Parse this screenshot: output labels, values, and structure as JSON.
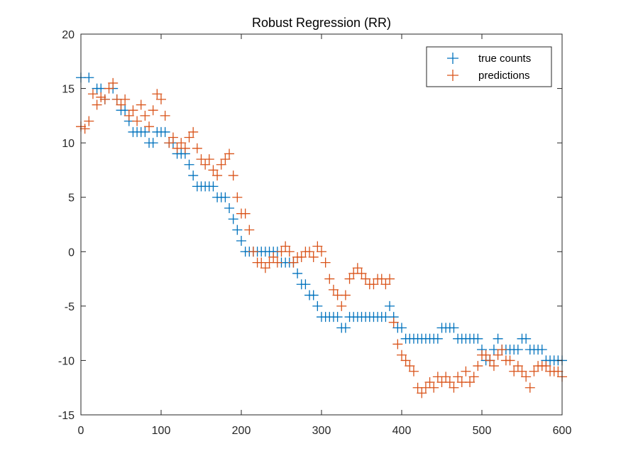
{
  "chart_data": {
    "type": "scatter",
    "title": "Robust Regression (RR)",
    "xlabel": "",
    "ylabel": "",
    "xlim": [
      0,
      600
    ],
    "ylim": [
      -15,
      20
    ],
    "xticks": [
      0,
      100,
      200,
      300,
      400,
      500,
      600
    ],
    "yticks": [
      -15,
      -10,
      -5,
      0,
      5,
      10,
      15,
      20
    ],
    "legend_position": "top-right",
    "grid": false,
    "marker": "+",
    "series": [
      {
        "name": "true counts",
        "color": "#0072BD",
        "x": [
          0,
          10,
          20,
          25,
          30,
          40,
          45,
          50,
          55,
          60,
          65,
          70,
          75,
          80,
          85,
          90,
          95,
          100,
          105,
          110,
          115,
          120,
          125,
          130,
          135,
          140,
          145,
          150,
          155,
          160,
          165,
          170,
          175,
          180,
          185,
          190,
          195,
          200,
          205,
          210,
          215,
          220,
          225,
          230,
          235,
          240,
          245,
          250,
          255,
          260,
          265,
          270,
          275,
          280,
          285,
          290,
          295,
          300,
          305,
          310,
          315,
          320,
          325,
          330,
          335,
          340,
          345,
          350,
          355,
          360,
          365,
          370,
          375,
          380,
          385,
          390,
          395,
          400,
          405,
          410,
          415,
          420,
          425,
          430,
          435,
          440,
          445,
          450,
          455,
          460,
          465,
          470,
          475,
          480,
          485,
          490,
          495,
          500,
          505,
          510,
          515,
          520,
          525,
          530,
          535,
          540,
          545,
          550,
          555,
          560,
          565,
          570,
          575,
          580,
          585,
          590,
          595,
          600
        ],
        "y": [
          16,
          16,
          15,
          15,
          14,
          15,
          14,
          13,
          13,
          12,
          11,
          11,
          11,
          11,
          10,
          10,
          11,
          11,
          11,
          10,
          10,
          9,
          9,
          9,
          8,
          7,
          6,
          6,
          6,
          6,
          6,
          5,
          5,
          5,
          4,
          3,
          2,
          1,
          0,
          0,
          0,
          0,
          0,
          0,
          0,
          0,
          0,
          -1,
          -1,
          -1,
          -1,
          -2,
          -3,
          -3,
          -4,
          -4,
          -5,
          -6,
          -6,
          -6,
          -6,
          -6,
          -7,
          -7,
          -6,
          -6,
          -6,
          -6,
          -6,
          -6,
          -6,
          -6,
          -6,
          -6,
          -5,
          -6,
          -7,
          -7,
          -8,
          -8,
          -8,
          -8,
          -8,
          -8,
          -8,
          -8,
          -8,
          -7,
          -7,
          -7,
          -7,
          -8,
          -8,
          -8,
          -8,
          -8,
          -8,
          -9,
          -10,
          -10,
          -9,
          -8,
          -9,
          -9,
          -9,
          -9,
          -9,
          -8,
          -8,
          -9,
          -9,
          -9,
          -9,
          -10,
          -10,
          -10,
          -10,
          -10
        ]
      },
      {
        "name": "predictions",
        "color": "#D95319",
        "x": [
          0,
          5,
          10,
          15,
          20,
          25,
          30,
          35,
          40,
          45,
          50,
          55,
          60,
          65,
          70,
          75,
          80,
          85,
          90,
          95,
          100,
          105,
          110,
          115,
          120,
          125,
          130,
          135,
          140,
          145,
          150,
          155,
          160,
          165,
          170,
          175,
          180,
          185,
          190,
          195,
          200,
          205,
          210,
          215,
          220,
          225,
          230,
          235,
          240,
          245,
          250,
          255,
          260,
          265,
          270,
          275,
          280,
          285,
          290,
          295,
          300,
          305,
          310,
          315,
          320,
          325,
          330,
          335,
          340,
          345,
          350,
          355,
          360,
          365,
          370,
          375,
          380,
          385,
          390,
          395,
          400,
          405,
          410,
          415,
          420,
          425,
          430,
          435,
          440,
          445,
          450,
          455,
          460,
          465,
          470,
          475,
          480,
          485,
          490,
          495,
          500,
          505,
          510,
          515,
          520,
          525,
          530,
          535,
          540,
          545,
          550,
          555,
          560,
          565,
          570,
          575,
          580,
          585,
          590,
          595,
          600
        ],
        "y": [
          11.5,
          11.3,
          12,
          14.5,
          13.5,
          14.2,
          14,
          15,
          15.5,
          14,
          13.5,
          14,
          12.5,
          13,
          12,
          13.5,
          12.5,
          11.5,
          13,
          14.5,
          14,
          12.5,
          10,
          10.5,
          9.5,
          10,
          9.5,
          10.5,
          11,
          9.5,
          8.5,
          8,
          8.5,
          7.5,
          7,
          8,
          8.5,
          9,
          7,
          5,
          3.5,
          3.5,
          2,
          0,
          -1,
          -1,
          -1.5,
          -1,
          -0.5,
          -1,
          0,
          0.5,
          0,
          -1,
          -0.5,
          -0.5,
          0,
          0,
          -0.5,
          0.5,
          0,
          -1,
          -2.5,
          -3.5,
          -4,
          -5,
          -4,
          -2.5,
          -2,
          -1.5,
          -2,
          -2.5,
          -3,
          -3,
          -2.5,
          -2.5,
          -3,
          -2.5,
          -6.5,
          -8.5,
          -9.5,
          -10,
          -10.5,
          -11,
          -12.5,
          -13,
          -12.5,
          -12,
          -12.5,
          -11.5,
          -12,
          -11.5,
          -12,
          -12.5,
          -11.5,
          -12,
          -11,
          -12,
          -11.5,
          -10.5,
          -9.5,
          -9.5,
          -10,
          -10.5,
          -9.5,
          -9,
          -10,
          -10,
          -11,
          -10.5,
          -11,
          -11.5,
          -12.5,
          -11,
          -10.5,
          -10.5,
          -10.5,
          -11,
          -11,
          -11,
          -11.5
        ]
      }
    ]
  }
}
